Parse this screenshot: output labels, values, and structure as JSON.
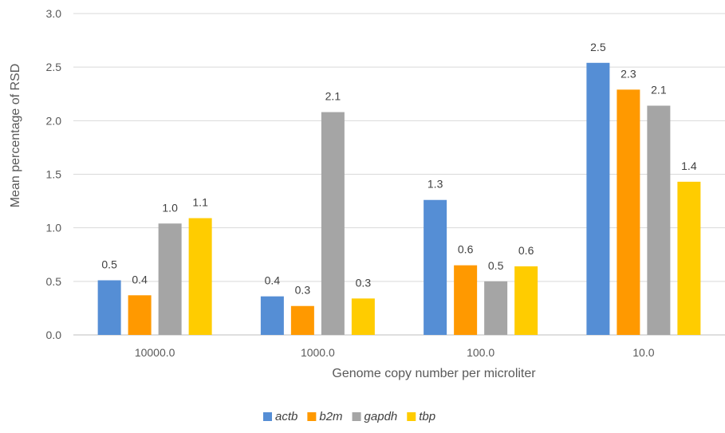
{
  "chart_data": {
    "type": "bar",
    "title": "",
    "xlabel": "Genome copy number per microliter",
    "ylabel": "Mean percentage of RSD",
    "ylim": [
      0,
      3.0
    ],
    "yticks": [
      "0.0",
      "0.5",
      "1.0",
      "1.5",
      "2.0",
      "2.5",
      "3.0"
    ],
    "categories": [
      "10000.0",
      "1000.0",
      "100.0",
      "10.0"
    ],
    "grid": "horizontal",
    "legend_position": "bottom",
    "series": [
      {
        "name": "actb",
        "color": "#558ED5",
        "values": [
          0.51,
          0.36,
          1.26,
          2.54
        ],
        "labels": [
          "0.5",
          "0.4",
          "1.3",
          "2.5"
        ]
      },
      {
        "name": "b2m",
        "color": "#FF9900",
        "values": [
          0.37,
          0.27,
          0.65,
          2.29
        ],
        "labels": [
          "0.4",
          "0.3",
          "0.6",
          "2.3"
        ]
      },
      {
        "name": "gapdh",
        "color": "#A5A5A5",
        "values": [
          1.04,
          2.08,
          0.5,
          2.14
        ],
        "labels": [
          "1.0",
          "2.1",
          "0.5",
          "2.1"
        ]
      },
      {
        "name": "tbp",
        "color": "#FFCC00",
        "values": [
          1.09,
          0.34,
          0.64,
          1.43
        ],
        "labels": [
          "1.1",
          "0.3",
          "0.6",
          "1.4"
        ]
      }
    ]
  }
}
